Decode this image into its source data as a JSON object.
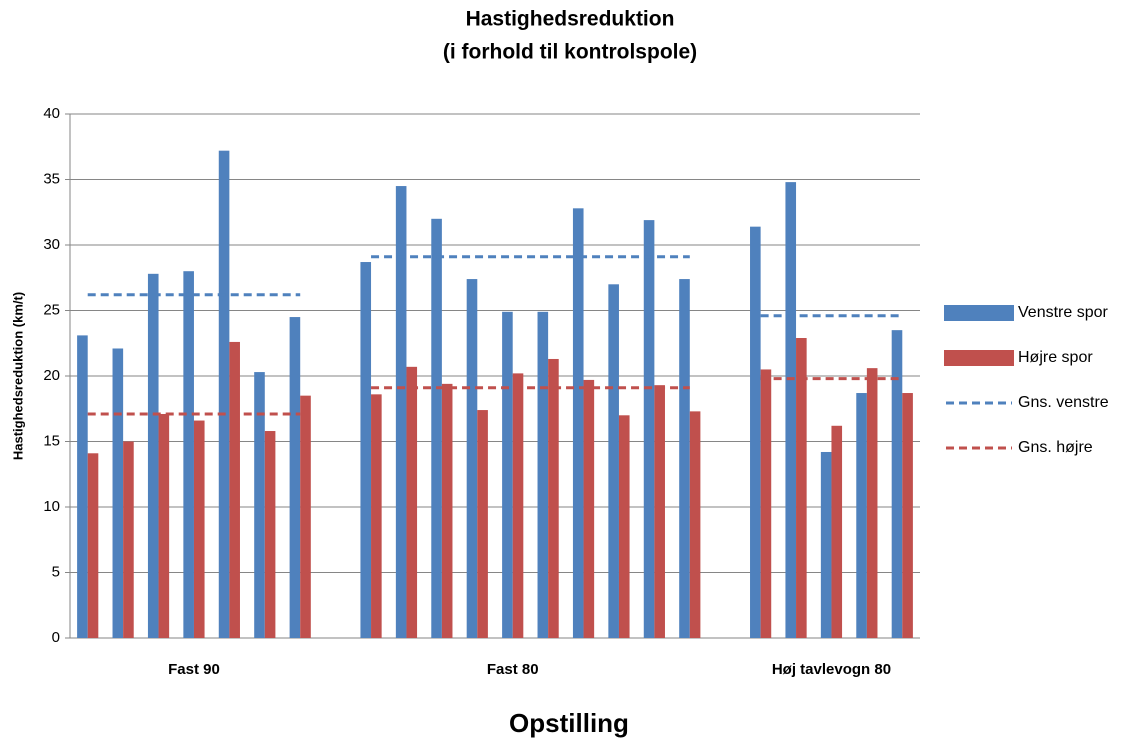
{
  "chart_data": {
    "type": "bar",
    "title": [
      "Hastighedsreduktion",
      "(i forhold til kontrolspole)"
    ],
    "x_label": "Opstilling",
    "y_label": "Hastighedsreduktion (km/t)",
    "categories": [
      null,
      null,
      null,
      "Fast 90",
      null,
      null,
      null,
      null,
      null,
      null,
      null,
      null,
      "Fast 80",
      null,
      null,
      null,
      null,
      null,
      null,
      null,
      null,
      "Høj tavlevogn 80",
      null,
      null
    ],
    "series": [
      {
        "name": "Venstre spor",
        "type": "bar",
        "color": "#4f81bd",
        "values": [
          23.1,
          22.1,
          27.8,
          28.0,
          37.2,
          20.3,
          24.5,
          null,
          28.7,
          34.5,
          32.0,
          27.4,
          24.9,
          24.9,
          32.8,
          27.0,
          31.9,
          27.4,
          null,
          31.4,
          34.8,
          14.2,
          18.7,
          23.5
        ]
      },
      {
        "name": "Højre spor",
        "type": "bar",
        "color": "#c0504d",
        "values": [
          14.1,
          15.0,
          17.1,
          16.6,
          22.6,
          15.8,
          18.5,
          null,
          18.6,
          20.7,
          19.4,
          17.4,
          20.2,
          21.3,
          19.7,
          17.0,
          19.3,
          17.3,
          null,
          20.5,
          22.9,
          16.2,
          20.6,
          18.7
        ]
      },
      {
        "name": "Gns. venstre",
        "type": "line",
        "dashed": true,
        "color": "#4f81bd",
        "values": [
          26.2,
          26.2,
          26.2,
          26.2,
          26.2,
          26.2,
          26.2,
          null,
          29.1,
          29.1,
          29.1,
          29.1,
          29.1,
          29.1,
          29.1,
          29.1,
          29.1,
          29.1,
          null,
          24.6,
          24.6,
          24.6,
          24.6,
          24.6
        ]
      },
      {
        "name": "Gns. højre",
        "type": "line",
        "dashed": true,
        "color": "#c0504d",
        "values": [
          17.1,
          17.1,
          17.1,
          17.1,
          17.1,
          17.1,
          17.1,
          null,
          19.1,
          19.1,
          19.1,
          19.1,
          19.1,
          19.1,
          19.1,
          19.1,
          19.1,
          19.1,
          null,
          19.8,
          19.8,
          19.8,
          19.8,
          19.8
        ]
      }
    ],
    "ylim": [
      0,
      40
    ],
    "yticks": [
      0,
      5,
      10,
      15,
      20,
      25,
      30,
      35,
      40
    ],
    "grid": true,
    "legend": "right"
  }
}
